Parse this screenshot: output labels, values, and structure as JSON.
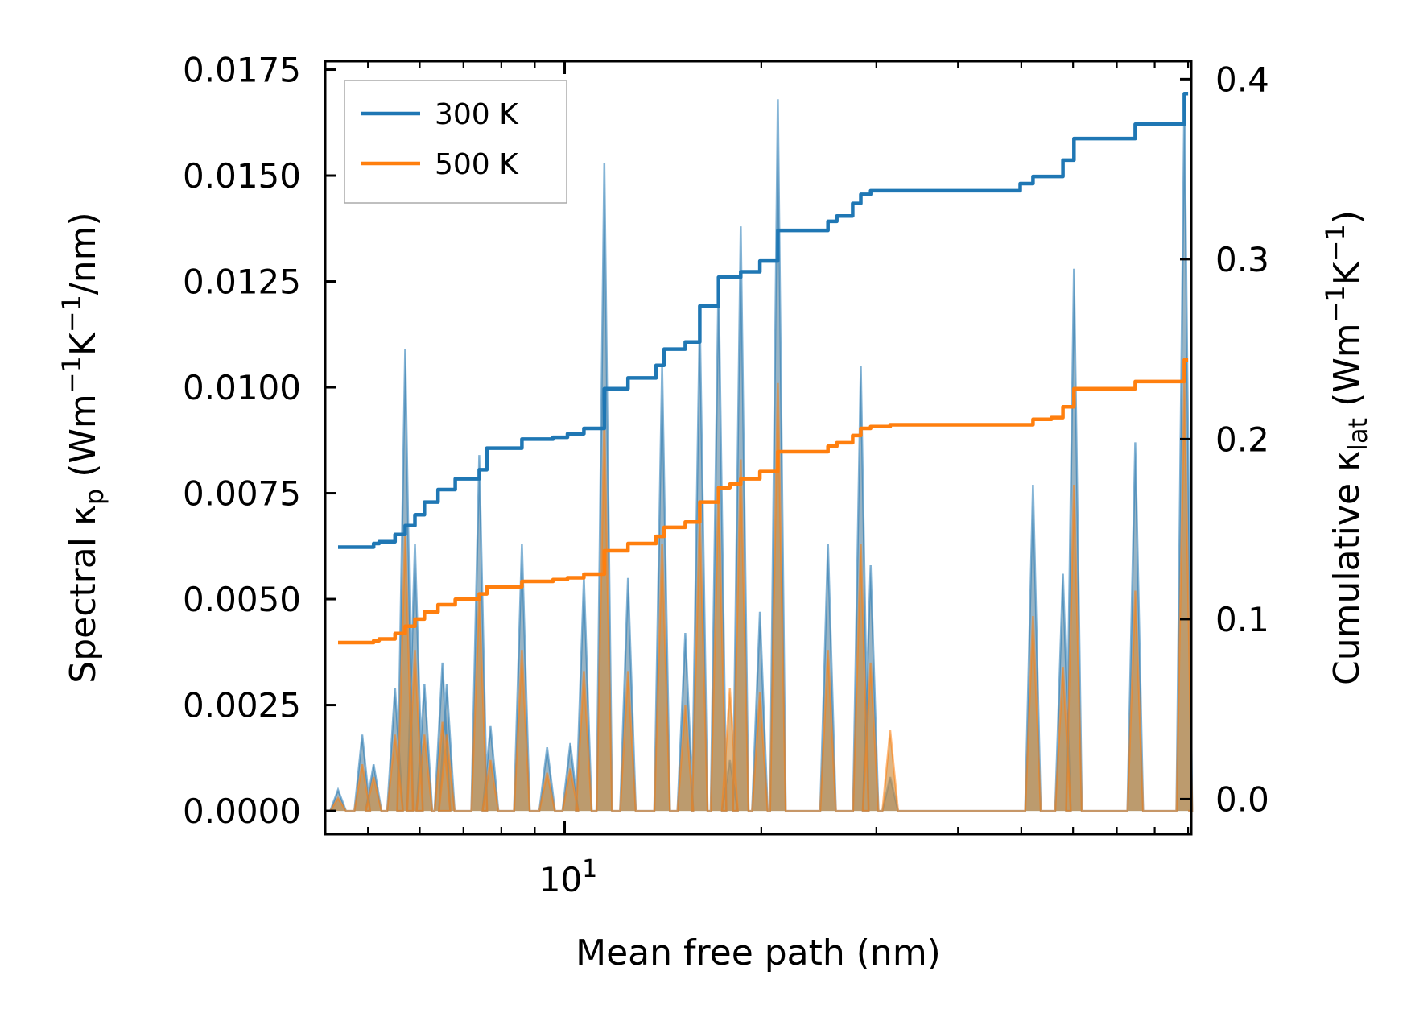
{
  "chart_data": {
    "type": "line",
    "xlabel": "Mean free path (nm)",
    "x_scale": "log",
    "xlim": [
      4.3,
      91
    ],
    "x_tick_label": {
      "base": "10",
      "exp": "1",
      "value": 10
    },
    "left_axis": {
      "label": {
        "main": "Spectral κ",
        "sub": "p",
        "units_a": " (Wm",
        "sup1": "−1",
        "units_b": "K",
        "sup2": "−1",
        "units_c": "/nm)"
      },
      "ylim": [
        -0.00055,
        0.0177
      ],
      "ticks": [
        0.0,
        0.0025,
        0.005,
        0.0075,
        0.01,
        0.0125,
        0.015,
        0.0175
      ],
      "tick_labels": [
        "0.0000",
        "0.0025",
        "0.0050",
        "0.0075",
        "0.0100",
        "0.0125",
        "0.0150",
        "0.0175"
      ]
    },
    "right_axis": {
      "label": {
        "main": "Cumulative κ",
        "sub": "lat",
        "units_a": " (Wm",
        "sup1": "−1",
        "units_b": "K",
        "sup2": "−1",
        "units_c": ")"
      },
      "ylim": [
        -0.0195,
        0.41
      ],
      "ticks": [
        0.0,
        0.1,
        0.2,
        0.3,
        0.4
      ],
      "tick_labels": [
        "0.0",
        "0.1",
        "0.2",
        "0.3",
        "0.4"
      ]
    },
    "legend": {
      "position": "top-left",
      "entries": [
        {
          "label": "300 K",
          "color": "#1f77b4"
        },
        {
          "label": "500 K",
          "color": "#ff7f0e"
        }
      ]
    },
    "spectral_series": [
      {
        "name": "300 K",
        "color": "#1f77b4",
        "peaks": [
          [
            4.5,
            0.0005
          ],
          [
            4.9,
            0.0018
          ],
          [
            5.1,
            0.0011
          ],
          [
            5.5,
            0.0029
          ],
          [
            5.7,
            0.0109
          ],
          [
            5.9,
            0.0063
          ],
          [
            6.1,
            0.003
          ],
          [
            6.5,
            0.0035
          ],
          [
            6.6,
            0.003
          ],
          [
            7.4,
            0.0084
          ],
          [
            7.7,
            0.002
          ],
          [
            8.6,
            0.0063
          ],
          [
            9.4,
            0.0015
          ],
          [
            10.2,
            0.0016
          ],
          [
            10.7,
            0.0055
          ],
          [
            11.5,
            0.0153
          ],
          [
            12.5,
            0.0055
          ],
          [
            14.1,
            0.0105
          ],
          [
            15.3,
            0.0042
          ],
          [
            16.1,
            0.0117
          ],
          [
            17.2,
            0.0126
          ],
          [
            17.9,
            0.0012
          ],
          [
            18.6,
            0.0138
          ],
          [
            19.9,
            0.0047
          ],
          [
            21.2,
            0.0168
          ],
          [
            25.3,
            0.0063
          ],
          [
            28.4,
            0.0105
          ],
          [
            29.4,
            0.0058
          ],
          [
            31.5,
            0.0008
          ],
          [
            52.1,
            0.0077
          ],
          [
            57.9,
            0.0056
          ],
          [
            60.2,
            0.0128
          ],
          [
            74.7,
            0.0087
          ],
          [
            88.8,
            0.0168
          ]
        ],
        "fill": "#6c94ad"
      },
      {
        "name": "500 K",
        "color": "#ff7f0e",
        "peaks": [
          [
            4.5,
            0.0003
          ],
          [
            4.9,
            0.0011
          ],
          [
            5.1,
            0.0008
          ],
          [
            5.5,
            0.0018
          ],
          [
            5.7,
            0.0066
          ],
          [
            5.9,
            0.0038
          ],
          [
            6.1,
            0.0018
          ],
          [
            6.5,
            0.0021
          ],
          [
            6.6,
            0.0018
          ],
          [
            7.4,
            0.0051
          ],
          [
            7.7,
            0.0012
          ],
          [
            8.6,
            0.0038
          ],
          [
            9.4,
            0.0009
          ],
          [
            10.2,
            0.001
          ],
          [
            10.7,
            0.0033
          ],
          [
            11.5,
            0.0092
          ],
          [
            12.5,
            0.0033
          ],
          [
            14.1,
            0.0063
          ],
          [
            15.3,
            0.0025
          ],
          [
            16.1,
            0.007
          ],
          [
            17.2,
            0.0076
          ],
          [
            17.9,
            0.0029
          ],
          [
            18.6,
            0.0083
          ],
          [
            19.9,
            0.0028
          ],
          [
            21.2,
            0.0101
          ],
          [
            25.3,
            0.0038
          ],
          [
            28.4,
            0.0063
          ],
          [
            29.4,
            0.0035
          ],
          [
            31.5,
            0.0019
          ],
          [
            52.1,
            0.0046
          ],
          [
            57.9,
            0.0034
          ],
          [
            60.2,
            0.0077
          ],
          [
            74.7,
            0.0052
          ],
          [
            88.8,
            0.0101
          ]
        ],
        "fill": "#d08d3f"
      }
    ],
    "cumulative_series": [
      {
        "name": "300 K",
        "color": "#1f77b4",
        "x": [
          4.5,
          4.9,
          5.1,
          5.2,
          5.3,
          5.5,
          5.7,
          5.9,
          6.1,
          6.4,
          6.8,
          7.4,
          7.6,
          8.6,
          9.6,
          10.1,
          10.7,
          11.5,
          12.5,
          13.8,
          14.2,
          15.3,
          16.1,
          17.2,
          17.9,
          18.6,
          19.9,
          21.2,
          25.3,
          26.1,
          27.6,
          28.4,
          29.4,
          31.5,
          36.1,
          49.8,
          52.1,
          55.6,
          57.9,
          60.2,
          66.5,
          74.7,
          79.4,
          88.8,
          90.0
        ],
        "y": [
          0.14,
          0.14,
          0.142,
          0.143,
          0.143,
          0.147,
          0.152,
          0.158,
          0.165,
          0.172,
          0.178,
          0.183,
          0.195,
          0.2,
          0.201,
          0.203,
          0.206,
          0.228,
          0.234,
          0.241,
          0.25,
          0.254,
          0.274,
          0.29,
          0.29,
          0.293,
          0.299,
          0.316,
          0.321,
          0.324,
          0.331,
          0.336,
          0.338,
          0.338,
          0.338,
          0.342,
          0.346,
          0.346,
          0.355,
          0.367,
          0.367,
          0.375,
          0.375,
          0.392,
          0.392
        ]
      },
      {
        "name": "500 K",
        "color": "#ff7f0e",
        "x": [
          4.5,
          4.9,
          5.1,
          5.2,
          5.3,
          5.5,
          5.7,
          5.9,
          6.1,
          6.4,
          6.8,
          7.4,
          7.6,
          8.6,
          9.6,
          10.1,
          10.7,
          11.5,
          12.5,
          13.8,
          14.2,
          15.3,
          16.1,
          17.2,
          17.9,
          18.6,
          19.9,
          21.2,
          25.3,
          26.1,
          27.6,
          28.4,
          29.4,
          31.5,
          36.1,
          49.8,
          52.1,
          55.6,
          57.9,
          60.2,
          66.5,
          74.7,
          79.4,
          88.8,
          90.0
        ],
        "y": [
          0.087,
          0.087,
          0.088,
          0.089,
          0.089,
          0.092,
          0.096,
          0.1,
          0.104,
          0.108,
          0.111,
          0.114,
          0.118,
          0.121,
          0.122,
          0.123,
          0.125,
          0.138,
          0.142,
          0.146,
          0.151,
          0.154,
          0.165,
          0.173,
          0.175,
          0.178,
          0.182,
          0.193,
          0.196,
          0.198,
          0.202,
          0.206,
          0.207,
          0.208,
          0.208,
          0.208,
          0.211,
          0.212,
          0.218,
          0.228,
          0.228,
          0.232,
          0.232,
          0.244,
          0.244
        ]
      }
    ]
  }
}
